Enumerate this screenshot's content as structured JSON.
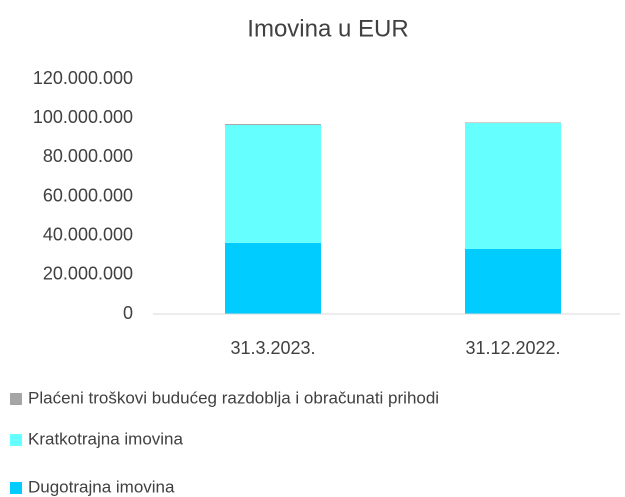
{
  "chart_data": {
    "type": "stacked_bar",
    "title": "Imovina u EUR",
    "categories": [
      "31.3.2023.",
      "31.12.2022."
    ],
    "series": [
      {
        "name": "Dugotrajna imovina",
        "color": "#00ccff",
        "values": [
          36300000,
          33200000
        ]
      },
      {
        "name": "Kratkotrajna imovina",
        "color": "#66ffff",
        "values": [
          60200000,
          64300000
        ]
      },
      {
        "name": "Plaćeni troškovi budućeg razdoblja i obračunati prihodi",
        "color": "#a5a5a5",
        "values": [
          500000,
          300000
        ]
      }
    ],
    "ylim": [
      0,
      120000000
    ],
    "yticks": [
      0,
      {
        "value": 20000000,
        "label": "20.000.000"
      },
      {
        "value": 40000000,
        "label": "40.000.000"
      },
      {
        "value": 60000000,
        "label": "60.000.000"
      },
      {
        "value": 80000000,
        "label": "80.000.000"
      },
      {
        "value": 100000000,
        "label": "100.000.000"
      },
      {
        "value": 120000000,
        "label": "120.000.000"
      }
    ],
    "grid": false,
    "legend": "bottom"
  }
}
